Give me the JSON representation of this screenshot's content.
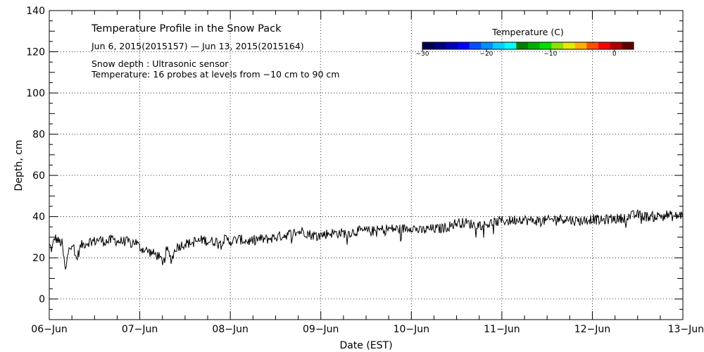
{
  "chart_data": {
    "type": "line",
    "title": "Temperature Profile in the Snow Pack",
    "subtitle": "Jun  6, 2015(2015157) — Jun 13, 2015(2015164)",
    "notes": [
      "Snow depth : Ultrasonic sensor",
      "Temperature: 16 probes at levels from −10 cm to 90 cm"
    ],
    "xlabel": "Date (EST)",
    "ylabel": "Depth, cm",
    "xlim": [
      0,
      7
    ],
    "ylim": [
      -10,
      140
    ],
    "x_tick_labels": [
      "06−Jun",
      "07−Jun",
      "08−Jun",
      "09−Jun",
      "10−Jun",
      "11−Jun",
      "12−Jun",
      "13−Jun"
    ],
    "y_ticks": [
      0,
      20,
      40,
      60,
      80,
      100,
      120,
      140
    ],
    "y_tick_labels": [
      "0",
      "20",
      "40",
      "60",
      "80",
      "100",
      "120",
      "140"
    ],
    "grid": true,
    "series": [
      {
        "name": "Snow depth",
        "color": "#000000",
        "x": [
          0.0,
          0.03,
          0.06,
          0.1,
          0.14,
          0.18,
          0.22,
          0.26,
          0.3,
          0.35,
          0.4,
          0.45,
          0.5,
          0.55,
          0.6,
          0.65,
          0.7,
          0.75,
          0.8,
          0.85,
          0.9,
          0.95,
          1.0,
          1.05,
          1.1,
          1.15,
          1.2,
          1.25,
          1.3,
          1.35,
          1.4,
          1.45,
          1.5,
          1.55,
          1.6,
          1.65,
          1.7,
          1.75,
          1.8,
          1.85,
          1.9,
          1.95,
          2.0,
          2.1,
          2.2,
          2.3,
          2.4,
          2.5,
          2.6,
          2.7,
          2.8,
          2.9,
          3.0,
          3.1,
          3.2,
          3.3,
          3.4,
          3.5,
          3.6,
          3.7,
          3.8,
          3.9,
          4.0,
          4.1,
          4.2,
          4.3,
          4.4,
          4.5,
          4.6,
          4.7,
          4.8,
          4.9,
          5.0,
          5.1,
          5.2,
          5.3,
          5.4,
          5.5,
          5.6,
          5.7,
          5.8,
          5.9,
          6.0,
          6.1,
          6.2,
          6.3,
          6.4,
          6.5,
          6.6,
          6.7,
          6.8,
          6.9,
          7.0
        ],
        "values": [
          26,
          24,
          30,
          28,
          27,
          13,
          26,
          27,
          19,
          26,
          27,
          28,
          28,
          29,
          28,
          28,
          29,
          28,
          28,
          28,
          27,
          28,
          25,
          24,
          23,
          22,
          21,
          18,
          24,
          19,
          25,
          26,
          27,
          27,
          28,
          28,
          29,
          28,
          28,
          28,
          28,
          29,
          28,
          29,
          28,
          29,
          29,
          30,
          31,
          32,
          33,
          31,
          31,
          32,
          32,
          32,
          33,
          33,
          33,
          34,
          34,
          34,
          35,
          33,
          34,
          34,
          35,
          37,
          37,
          36,
          36,
          37,
          38,
          38,
          39,
          38,
          38,
          38,
          39,
          39,
          38,
          38,
          39,
          38,
          39,
          39,
          40,
          41,
          40,
          40,
          41,
          40,
          41
        ],
        "jitter_amplitude": 2.5
      }
    ],
    "colorbar": {
      "title": "Temperature (C)",
      "tick_labels": [
        "−30",
        "−20",
        "−10",
        "0"
      ],
      "range": [
        -30,
        3
      ],
      "colors": [
        "#000050",
        "#000080",
        "#0000b8",
        "#0000ff",
        "#0050ff",
        "#0090ff",
        "#00d0ff",
        "#00ffff",
        "#008000",
        "#00b000",
        "#00e000",
        "#90e000",
        "#e8e800",
        "#ffb000",
        "#ff5000",
        "#ff0000",
        "#b00000",
        "#600000"
      ]
    }
  }
}
